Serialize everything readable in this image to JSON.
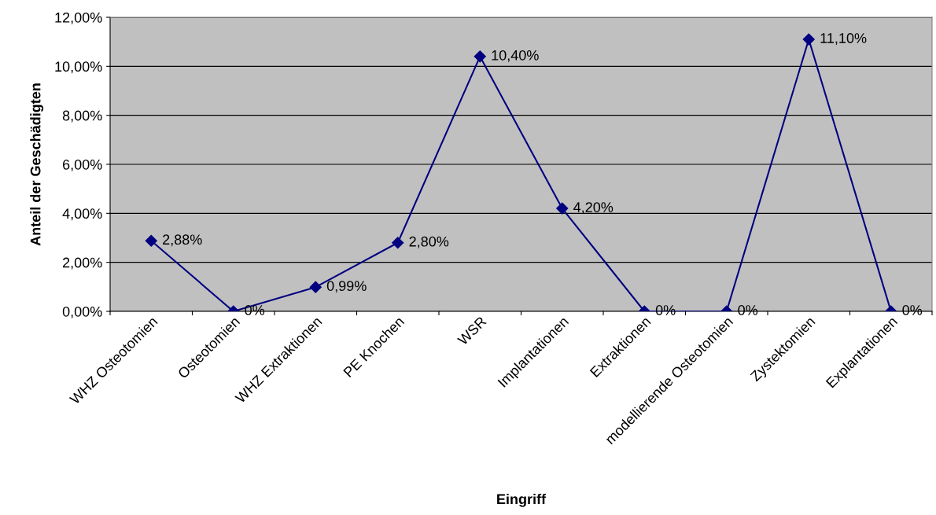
{
  "chart_data": {
    "type": "line",
    "xlabel": "Eingriff",
    "ylabel": "Anteil der Geschädigten",
    "categories": [
      "WHZ Osteotomien",
      "Osteotomien",
      "WHZ Extraktionen",
      "PE Knochen",
      "WSR",
      "Implantationen",
      "Extraktionen",
      "modellierende Osteotomien",
      "Zystektomien",
      "Explantationen"
    ],
    "series": [
      {
        "color": "#000080",
        "values": [
          2.88,
          0,
          0.99,
          2.8,
          10.4,
          4.2,
          0,
          0,
          11.1,
          0
        ],
        "value_labels": [
          "2,88%",
          "0%",
          "0,99%",
          "2,80%",
          "10,40%",
          "4,20%",
          "0%",
          "0%",
          "11,10%",
          "0%"
        ]
      }
    ],
    "ylim": [
      0,
      12
    ],
    "yticks": [
      {
        "value": 0,
        "label": "0,00%"
      },
      {
        "value": 2,
        "label": "2,00%"
      },
      {
        "value": 4,
        "label": "4,00%"
      },
      {
        "value": 6,
        "label": "6,00%"
      },
      {
        "value": 8,
        "label": "8,00%"
      },
      {
        "value": 10,
        "label": "10,00%"
      },
      {
        "value": 12,
        "label": "12,00%"
      }
    ],
    "grid": "y",
    "marker": "diamond",
    "line_style": "solid",
    "legend": false
  }
}
